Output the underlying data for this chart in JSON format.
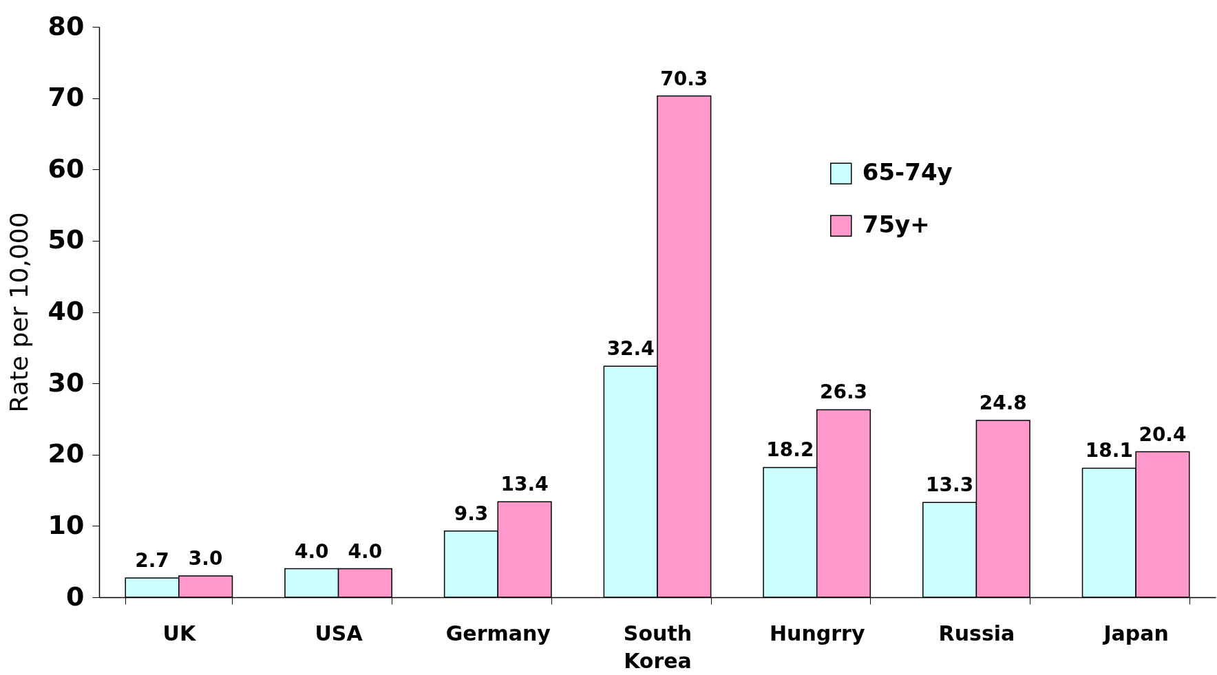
{
  "chart_data": {
    "type": "bar",
    "ylabel": "Rate per 10,000",
    "categories": [
      "UK",
      "USA",
      "Germany",
      "South Korea",
      "Hungrry",
      "Russia",
      "Japan"
    ],
    "series": [
      {
        "name": "65-74y",
        "color": "#ccffff",
        "values": [
          2.7,
          4.0,
          9.3,
          32.4,
          18.2,
          13.3,
          18.1
        ]
      },
      {
        "name": "75y+",
        "color": "#ff99cc",
        "values": [
          3.0,
          4.0,
          13.4,
          70.3,
          26.3,
          24.8,
          20.4
        ]
      }
    ],
    "value_labels": [
      [
        "2.7",
        "4.0",
        "9.3",
        "32.4",
        "18.2",
        "13.3",
        "18.1"
      ],
      [
        "3.0",
        "4.0",
        "13.4",
        "70.3",
        "26.3",
        "24.8",
        "20.4"
      ]
    ],
    "ylim": [
      0,
      80
    ],
    "yticks": [
      0,
      10,
      20,
      30,
      40,
      50,
      60,
      70,
      80
    ],
    "grid": false,
    "legend": "top right"
  }
}
